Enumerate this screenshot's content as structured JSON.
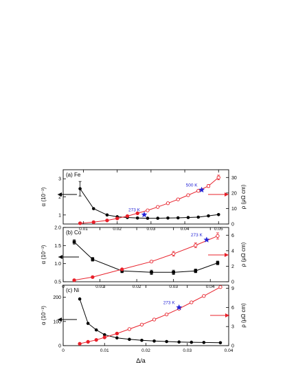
{
  "chart_data": [
    {
      "type": "line",
      "panel_label": "(a)",
      "element": "Fe",
      "xlim": [
        0,
        0.05
      ],
      "xticks": [
        "0.01",
        "0.02",
        "0.03",
        "0.04",
        "0.05"
      ],
      "ylabel_left": "α (10⁻³)",
      "ylim_left": [
        0.5,
        3.5
      ],
      "yticks_left": [
        "1",
        "2",
        "3"
      ],
      "ylabel_right": "ρ (μΩ cm)",
      "ylim_right": [
        0,
        35
      ],
      "yticks_right": [
        "0",
        "10",
        "20",
        "30"
      ],
      "series": [
        {
          "axis": "left",
          "color": "#000000",
          "marker": "filled-circle",
          "x": [
            0.009,
            0.013,
            0.017,
            0.02,
            0.023,
            0.026,
            0.029,
            0.032,
            0.035,
            0.038,
            0.041,
            0.044,
            0.047,
            0.05
          ],
          "y": [
            2.45,
            1.35,
            1.0,
            0.9,
            0.86,
            0.83,
            0.82,
            0.82,
            0.83,
            0.84,
            0.86,
            0.88,
            0.95,
            1.02
          ],
          "yerr": [
            0.4,
            0,
            0,
            0,
            0,
            0,
            0,
            0,
            0,
            0,
            0,
            0,
            0,
            0
          ]
        },
        {
          "axis": "right",
          "color": "#e8202a",
          "marker": "circle",
          "x": [
            0.009,
            0.013,
            0.017,
            0.02,
            0.023,
            0.026,
            0.029,
            0.032,
            0.035,
            0.038,
            0.041,
            0.044,
            0.047,
            0.05
          ],
          "y": [
            0.5,
            1.2,
            2.3,
            3.6,
            5.1,
            6.9,
            8.8,
            11.0,
            13.4,
            15.9,
            18.6,
            21.4,
            24.5,
            30.0
          ],
          "yerr": [
            0,
            0,
            0,
            0,
            0,
            0,
            0,
            0,
            0,
            0,
            0,
            0,
            0.9,
            1.5
          ]
        }
      ],
      "markers": [
        {
          "label": "273 K",
          "color": "#2424d6",
          "x": 0.028,
          "y": 6.0
        },
        {
          "label": "500 K",
          "color": "#2424d6",
          "x": 0.045,
          "y": 22.0
        }
      ]
    },
    {
      "type": "line",
      "panel_label": "(b)",
      "element": "Co",
      "xlim": [
        0,
        0.045
      ],
      "xticks": [
        "0",
        "0.01",
        "0.02",
        "0.03",
        "0.04"
      ],
      "ylabel_left": "α (10⁻³)",
      "ylim_left": [
        0.5,
        2.0
      ],
      "yticks_left": [
        "0.5",
        "1.0",
        "1.5",
        "2.0"
      ],
      "ylabel_right": "ρ (μΩ cm)",
      "ylim_right": [
        0,
        7
      ],
      "yticks_right": [
        "0",
        "2",
        "4",
        "6"
      ],
      "series": [
        {
          "axis": "left",
          "color": "#000000",
          "marker": "filled-square",
          "x": [
            0.003,
            0.008,
            0.016,
            0.024,
            0.03,
            0.036,
            0.042
          ],
          "y": [
            1.6,
            1.12,
            0.8,
            0.76,
            0.76,
            0.8,
            1.02
          ],
          "yerr": [
            0.06,
            0.05,
            0.05,
            0.06,
            0.06,
            0.05,
            0.05
          ]
        },
        {
          "axis": "right",
          "color": "#e8202a",
          "marker": "circle",
          "x": [
            0.003,
            0.008,
            0.016,
            0.024,
            0.03,
            0.036,
            0.042
          ],
          "y": [
            0.2,
            0.6,
            1.6,
            2.6,
            3.6,
            4.7,
            5.9
          ],
          "yerr": [
            0,
            0,
            0,
            0,
            0.3,
            0.3,
            0.4
          ]
        }
      ],
      "markers": [
        {
          "label": "273 K",
          "color": "#2424d6",
          "x": 0.039,
          "y": 5.4
        }
      ]
    },
    {
      "type": "line",
      "panel_label": "(c)",
      "element": "Ni",
      "xlim": [
        0,
        0.04
      ],
      "xticks": [
        "0",
        "0.01",
        "0.02",
        "0.03",
        "0.04"
      ],
      "xlabel": "Δ/a",
      "ylabel_left": "α (10⁻³)",
      "ylim_left": [
        0,
        250
      ],
      "yticks_left": [
        "0",
        "100",
        "200"
      ],
      "ylabel_right": "ρ (μΩ cm)",
      "ylim_right": [
        0,
        9.5
      ],
      "yticks_right": [
        "0",
        "3",
        "6",
        "9"
      ],
      "series": [
        {
          "axis": "left",
          "color": "#000000",
          "marker": "filled-circle",
          "x": [
            0.004,
            0.006,
            0.008,
            0.01,
            0.013,
            0.016,
            0.019,
            0.022,
            0.025,
            0.028,
            0.031,
            0.034,
            0.038
          ],
          "y": [
            193,
            92,
            65,
            45,
            32,
            26,
            22,
            19,
            17,
            15,
            14,
            13,
            12
          ]
        },
        {
          "axis": "right",
          "color": "#e8202a",
          "marker": "circle",
          "x": [
            0.004,
            0.006,
            0.008,
            0.01,
            0.013,
            0.016,
            0.019,
            0.022,
            0.025,
            0.028,
            0.031,
            0.034,
            0.038
          ],
          "y": [
            0.3,
            0.6,
            0.9,
            1.3,
            1.9,
            2.6,
            3.3,
            4.1,
            4.9,
            5.8,
            6.8,
            7.8,
            9.2
          ]
        }
      ],
      "markers": [
        {
          "label": "273 K",
          "color": "#2424d6",
          "x": 0.028,
          "y": 6.0
        }
      ]
    }
  ]
}
